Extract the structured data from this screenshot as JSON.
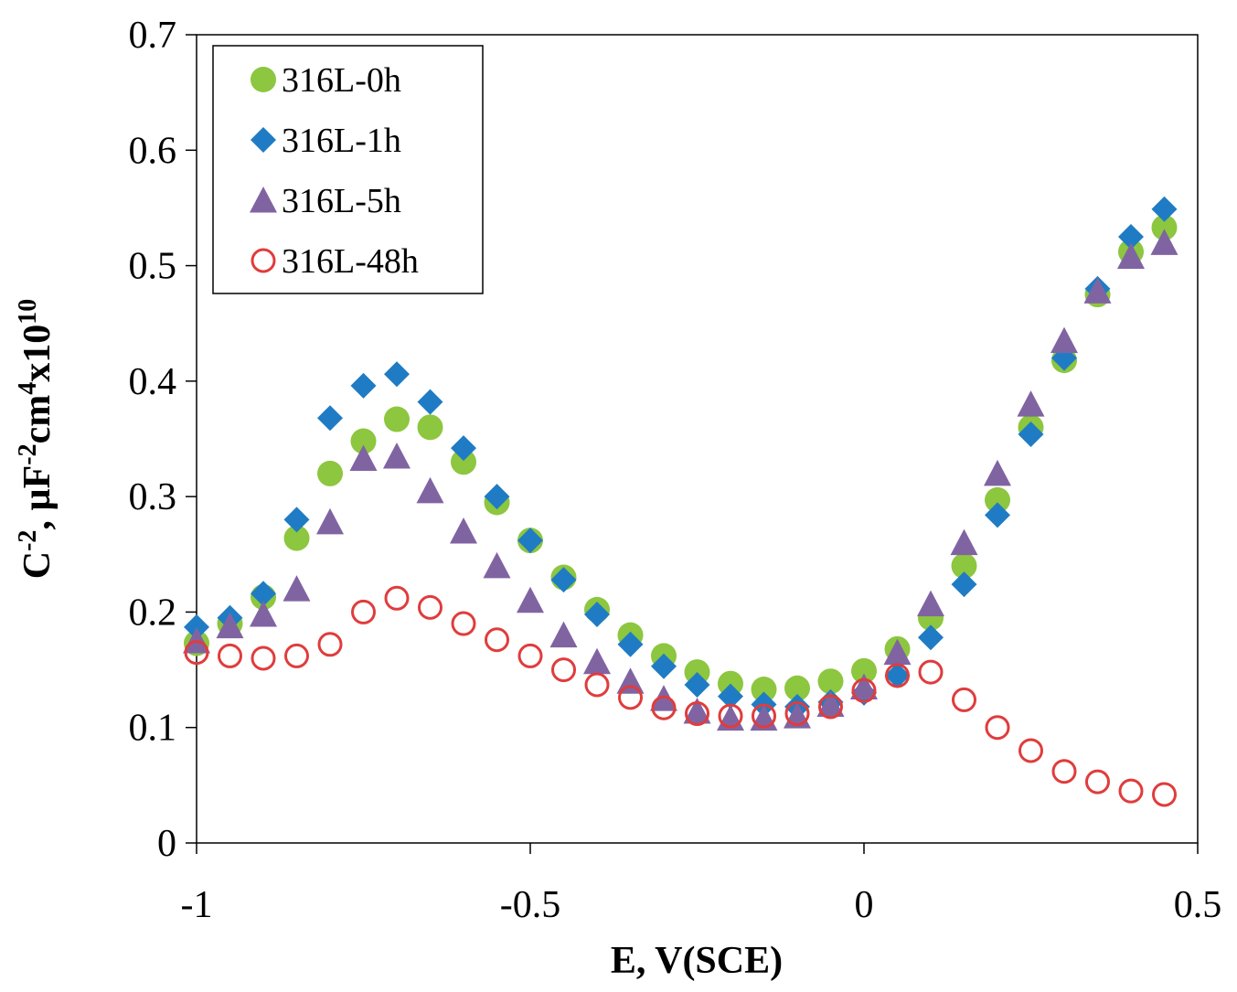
{
  "chart_data": {
    "type": "scatter",
    "xlabel": "E, V(SCE)",
    "ylabel": {
      "base": "C",
      "sup1": "-2",
      "mid1": ", µF",
      "sup2": "-2",
      "mid2": "cm",
      "sup3": "4",
      "mid3": "x10",
      "sup4": "10"
    },
    "xlim": [
      -1,
      0.5
    ],
    "ylim": [
      0,
      0.7
    ],
    "xticks": [
      -1,
      -0.5,
      0,
      0.5
    ],
    "xtick_labels": [
      "-1",
      "-0.5",
      "0",
      "0.5"
    ],
    "yticks": [
      0,
      0.1,
      0.2,
      0.3,
      0.4,
      0.5,
      0.6,
      0.7
    ],
    "ytick_labels": [
      "0",
      "0.1",
      "0.2",
      "0.3",
      "0.4",
      "0.5",
      "0.6",
      "0.7"
    ],
    "grid": false,
    "legend_position": "top-left",
    "x": [
      -1.0,
      -0.95,
      -0.9,
      -0.85,
      -0.8,
      -0.75,
      -0.7,
      -0.65,
      -0.6,
      -0.55,
      -0.5,
      -0.45,
      -0.4,
      -0.35,
      -0.3,
      -0.25,
      -0.2,
      -0.15,
      -0.1,
      -0.05,
      0.0,
      0.05,
      0.1,
      0.15,
      0.2,
      0.25,
      0.3,
      0.35,
      0.4,
      0.45
    ],
    "series": [
      {
        "name": "316L-0h",
        "marker": "circle-filled",
        "color": "#8DC63F",
        "values": [
          0.173,
          0.19,
          0.213,
          0.264,
          0.32,
          0.348,
          0.367,
          0.36,
          0.33,
          0.295,
          0.262,
          0.23,
          0.202,
          0.18,
          0.162,
          0.148,
          0.138,
          0.133,
          0.134,
          0.14,
          0.149,
          0.168,
          0.195,
          0.24,
          0.297,
          0.36,
          0.418,
          0.475,
          0.512,
          0.533
        ]
      },
      {
        "name": "316L-1h",
        "marker": "diamond-filled",
        "color": "#1F7CC4",
        "values": [
          0.187,
          0.195,
          0.216,
          0.28,
          0.368,
          0.396,
          0.406,
          0.382,
          0.342,
          0.3,
          0.262,
          0.228,
          0.198,
          0.172,
          0.153,
          0.137,
          0.127,
          0.12,
          0.118,
          0.122,
          0.13,
          0.145,
          0.178,
          0.224,
          0.284,
          0.354,
          0.42,
          0.48,
          0.525,
          0.549
        ]
      },
      {
        "name": "316L-5h",
        "marker": "triangle-filled",
        "color": "#8064A2",
        "values": [
          0.175,
          0.188,
          0.198,
          0.22,
          0.278,
          0.333,
          0.335,
          0.305,
          0.27,
          0.24,
          0.21,
          0.18,
          0.157,
          0.14,
          0.125,
          0.114,
          0.108,
          0.108,
          0.11,
          0.12,
          0.135,
          0.165,
          0.207,
          0.26,
          0.32,
          0.38,
          0.435,
          0.478,
          0.508,
          0.52
        ]
      },
      {
        "name": "316L-48h",
        "marker": "circle-open",
        "color": "#E03C3C",
        "values": [
          0.165,
          0.162,
          0.16,
          0.162,
          0.172,
          0.2,
          0.212,
          0.204,
          0.19,
          0.176,
          0.162,
          0.15,
          0.137,
          0.126,
          0.117,
          0.112,
          0.11,
          0.11,
          0.112,
          0.118,
          0.132,
          0.145,
          0.148,
          0.124,
          0.1,
          0.08,
          0.062,
          0.053,
          0.045,
          0.042
        ]
      }
    ]
  }
}
